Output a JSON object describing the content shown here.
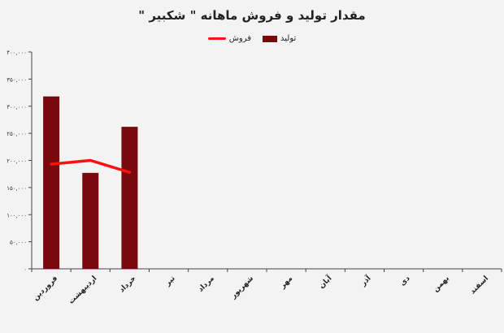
{
  "chart_data": {
    "type": "bar",
    "title": "مقدار تولید و فروش ماهانه \" شکبیر \"",
    "categories": [
      "فروردین",
      "اردیبهشت",
      "خرداد",
      "تیر",
      "مرداد",
      "شهریور",
      "مهر",
      "آبان",
      "آذر",
      "دی",
      "بهمن",
      "اسفند"
    ],
    "series": [
      {
        "name": "تولید",
        "type": "bar",
        "color": "#780a0e",
        "values": [
          318000,
          177000,
          262000,
          null,
          null,
          null,
          null,
          null,
          null,
          null,
          null,
          null
        ]
      },
      {
        "name": "فروش",
        "type": "line",
        "color": "#ff1010",
        "values": [
          193000,
          200000,
          178000,
          null,
          null,
          null,
          null,
          null,
          null,
          null,
          null,
          null
        ]
      }
    ],
    "ylim": [
      0,
      400000
    ],
    "yticks": [
      0,
      50000,
      100000,
      150000,
      200000,
      250000,
      300000,
      350000,
      400000
    ],
    "ytick_labels": [
      "۰",
      "۵۰,۰۰۰",
      "۱۰۰,۰۰۰",
      "۱۵۰,۰۰۰",
      "۲۰۰,۰۰۰",
      "۲۵۰,۰۰۰",
      "۳۰۰,۰۰۰",
      "۳۵۰,۰۰۰",
      "۴۰۰,۰۰۰"
    ],
    "legend_position": "top",
    "grid": false
  }
}
